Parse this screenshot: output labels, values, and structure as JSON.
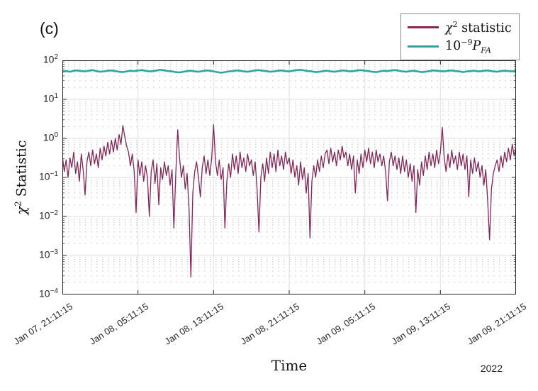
{
  "panel_label": "(c)",
  "labels": {
    "ylabel": {
      "var": "χ",
      "sup": "2",
      "rest": " Statistic"
    },
    "xlabel": "Time",
    "year": "2022"
  },
  "legend": {
    "chi2": {
      "var": "χ",
      "sup": "2",
      "rest": " statistic",
      "color": "#822558"
    },
    "pfa": {
      "base": "10",
      "sup": "−9",
      "var": "P",
      "sub": "FA",
      "color": "#2CA79C"
    }
  },
  "chart_data": {
    "type": "line",
    "xlabel": "Time",
    "ylabel": "χ² Statistic",
    "grid": {
      "major": true,
      "minor_horizontal_dotted": true
    },
    "legend_position": "top-right-outside",
    "x_axis": {
      "unit": "datetime",
      "year": "2022",
      "start": "Jan 07, 21:11:15",
      "end": "Jan 09, 21:11:15",
      "span_hours": 48
    },
    "y_axis": {
      "scale": "log10",
      "min": 0.0001,
      "max": 100
    },
    "ytick_exponents": [
      "2",
      "1",
      "0",
      "−1",
      "−2",
      "−3",
      "−4"
    ],
    "xticks": [
      {
        "hours": 0,
        "label": "Jan 07, 21:11:15"
      },
      {
        "hours": 8,
        "label": "Jan 08, 05:11:15"
      },
      {
        "hours": 16,
        "label": "Jan 08, 13:11:15"
      },
      {
        "hours": 24,
        "label": "Jan 08, 21:11:15"
      },
      {
        "hours": 32,
        "label": "Jan 09, 05:11:15"
      },
      {
        "hours": 40,
        "label": "Jan 09, 13:11:15"
      },
      {
        "hours": 48,
        "label": "Jan 09, 21:11:15"
      }
    ],
    "series": [
      {
        "name": "χ² statistic",
        "color": "#822558",
        "width": 1.3,
        "value_format": "log10",
        "t_start_hours": 0,
        "t_step_hours": 0.2,
        "log10_values": [
          -0.45,
          -0.85,
          -0.55,
          -1.0,
          -0.5,
          -0.75,
          -0.35,
          -0.9,
          -0.6,
          -1.1,
          -0.4,
          -0.8,
          -1.45,
          -0.6,
          -0.35,
          -0.7,
          -0.3,
          -0.65,
          -0.4,
          -0.75,
          -0.25,
          -0.55,
          -0.2,
          -0.45,
          -0.1,
          -0.4,
          -0.05,
          -0.35,
          0.0,
          -0.3,
          0.1,
          -0.15,
          0.33,
          0.05,
          -0.2,
          -0.35,
          -0.7,
          -0.4,
          -0.85,
          -1.9,
          -0.55,
          -0.95,
          -0.6,
          -1.1,
          -0.7,
          -1.0,
          -2.0,
          -0.85,
          -0.55,
          -1.15,
          -0.65,
          -1.7,
          -0.75,
          -1.05,
          -0.6,
          -0.95,
          -0.7,
          -1.2,
          -0.8,
          -2.3,
          -0.9,
          0.22,
          -0.5,
          -1.0,
          -0.7,
          -1.3,
          -0.9,
          -1.8,
          -3.55,
          -1.4,
          -0.85,
          -0.6,
          -1.0,
          -1.5,
          -0.75,
          -0.45,
          -0.9,
          -0.55,
          -0.95,
          -0.5,
          0.35,
          -0.6,
          -0.95,
          -0.55,
          -1.05,
          -0.75,
          -2.3,
          -1.1,
          -0.65,
          -1.0,
          -0.4,
          -0.8,
          -0.45,
          -0.9,
          -0.35,
          -0.75,
          -0.5,
          -0.85,
          -0.4,
          -0.7,
          -0.55,
          -0.95,
          -0.6,
          -1.3,
          -2.4,
          -1.0,
          -0.65,
          -1.1,
          -0.5,
          -0.9,
          -0.35,
          -0.75,
          -0.4,
          -0.85,
          -0.3,
          -0.7,
          -0.45,
          -0.8,
          -0.35,
          -0.65,
          -0.5,
          -0.9,
          -0.55,
          -1.0,
          -0.7,
          -1.2,
          -0.6,
          -1.05,
          -0.75,
          -1.4,
          -0.9,
          -2.55,
          -1.1,
          -0.7,
          -1.0,
          -0.55,
          -0.85,
          -0.45,
          -0.75,
          -0.4,
          -0.3,
          -0.65,
          -0.25,
          -0.6,
          -0.35,
          -0.7,
          -0.3,
          -0.55,
          -0.2,
          -0.5,
          -0.35,
          -0.7,
          -0.4,
          -0.8,
          -0.45,
          -1.4,
          -0.55,
          -0.9,
          -0.4,
          -0.75,
          -0.3,
          -0.6,
          -0.25,
          -0.65,
          -0.35,
          -0.75,
          -0.3,
          -0.6,
          -0.4,
          -0.7,
          -0.45,
          -0.85,
          -1.6,
          -0.6,
          -0.35,
          -0.7,
          -0.45,
          -0.8,
          -0.5,
          -0.9,
          -0.45,
          -0.85,
          -0.55,
          -1.0,
          -0.65,
          -1.1,
          -0.7,
          -1.9,
          -0.8,
          -1.2,
          -0.6,
          -0.95,
          -0.45,
          -0.8,
          -0.35,
          -0.7,
          -0.4,
          -0.75,
          -0.3,
          -0.65,
          -0.35,
          0.28,
          -0.5,
          -0.85,
          -0.4,
          -0.75,
          -0.3,
          -0.65,
          -0.45,
          -0.8,
          -0.35,
          -0.7,
          -0.4,
          -0.8,
          -0.45,
          -1.5,
          -0.55,
          -0.9,
          -0.5,
          -0.85,
          -0.6,
          -1.0,
          -0.7,
          -1.2,
          -0.8,
          -1.6,
          -2.6,
          -1.3,
          -0.9,
          -0.7,
          -0.55,
          -0.85,
          -0.45,
          -0.75,
          -0.35,
          -0.6,
          -0.25,
          -0.55,
          -0.15,
          -0.45,
          -0.2
        ]
      },
      {
        "name": "10⁻⁹ P_FA",
        "color": "#2CA79C",
        "width": 2.6,
        "value_format": "linear",
        "t_start_hours": 0,
        "t_step_hours": 0.4,
        "values": [
          52,
          53,
          51,
          54,
          55,
          53,
          52,
          54,
          56,
          53,
          51,
          52,
          54,
          55,
          53,
          51,
          50,
          52,
          54,
          53,
          55,
          56,
          54,
          52,
          53,
          55,
          57,
          55,
          53,
          52,
          50,
          49,
          51,
          53,
          54,
          52,
          51,
          53,
          55,
          54,
          52,
          50,
          48,
          50,
          52,
          53,
          55,
          54,
          52,
          51,
          53,
          55,
          56,
          54,
          53,
          51,
          52,
          54,
          55,
          53,
          52,
          54,
          56,
          57,
          55,
          53,
          52,
          50,
          51,
          53,
          54,
          52,
          51,
          53,
          55,
          54,
          52,
          53,
          55,
          56,
          54,
          53,
          51,
          50,
          52,
          54,
          53,
          55,
          56,
          54,
          52,
          51,
          53,
          54,
          52,
          50,
          51,
          53,
          55,
          54,
          53,
          52,
          54,
          55,
          53,
          52,
          50,
          52,
          53,
          54,
          52,
          53,
          55,
          54,
          52,
          51,
          53,
          54,
          53,
          52,
          53
        ]
      }
    ]
  }
}
